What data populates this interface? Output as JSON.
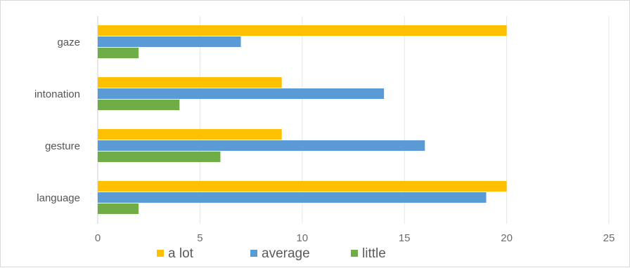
{
  "chart_data": {
    "type": "bar",
    "orientation": "horizontal",
    "categories": [
      "gaze",
      "intonation",
      "gesture",
      "language"
    ],
    "series": [
      {
        "name": "a lot",
        "color": "#FFC000",
        "values": [
          20,
          9,
          9,
          20
        ]
      },
      {
        "name": "average",
        "color": "#5B9BD5",
        "values": [
          7,
          14,
          16,
          19
        ]
      },
      {
        "name": "little",
        "color": "#70AD47",
        "values": [
          2,
          4,
          6,
          2
        ]
      }
    ],
    "xlim": [
      0,
      25
    ],
    "xticks": [
      "0",
      "5",
      "10",
      "15",
      "20",
      "25"
    ],
    "grid": true,
    "legend": "bottom",
    "title": "",
    "xlabel": "",
    "ylabel": ""
  }
}
